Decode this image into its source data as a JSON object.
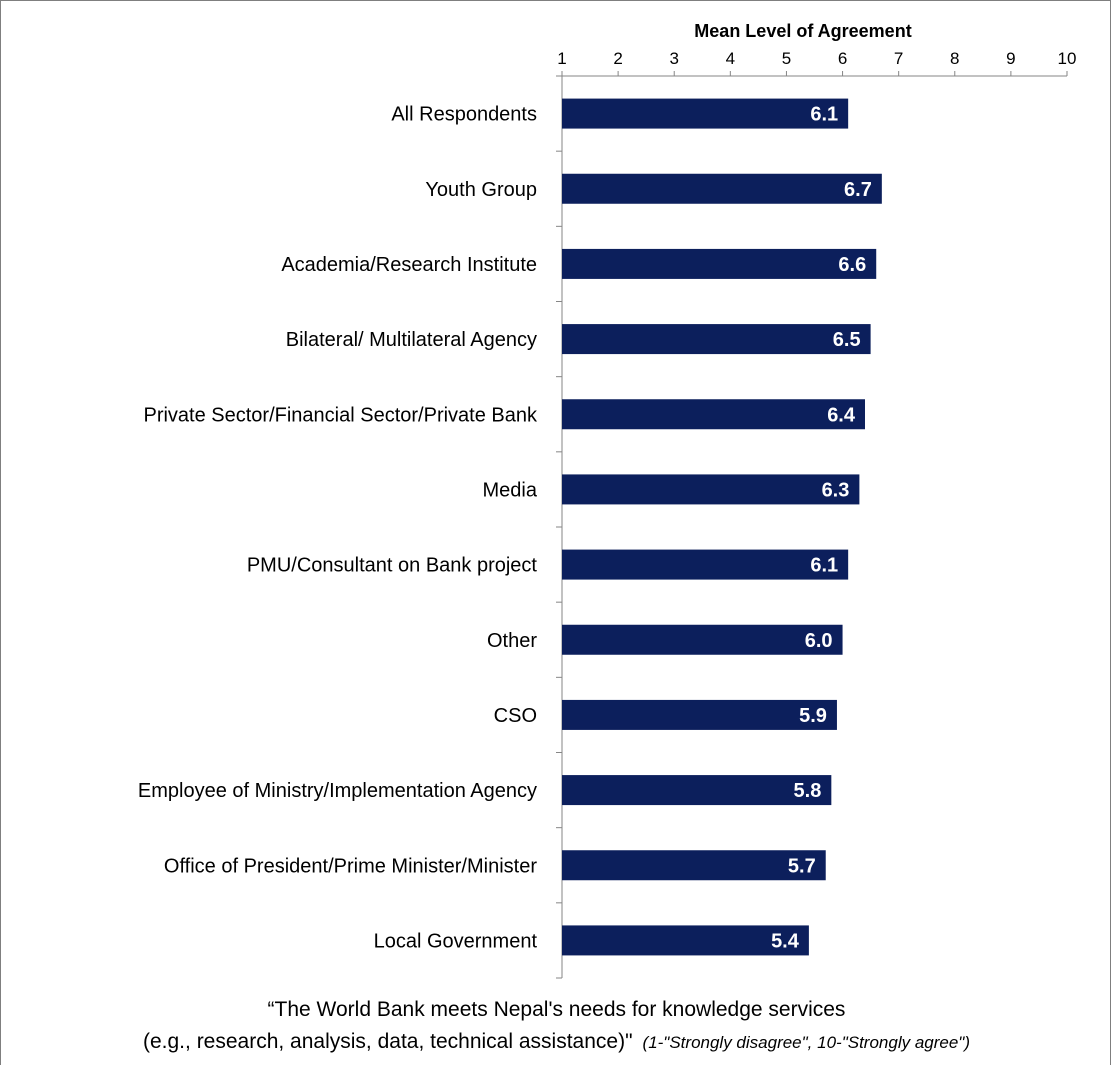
{
  "chart_data": {
    "type": "bar",
    "orientation": "horizontal",
    "title": "Mean Level of Agreement",
    "categories": [
      "All Respondents",
      "Youth Group",
      "Academia/Research Institute",
      "Bilateral/ Multilateral Agency",
      "Private Sector/Financial Sector/Private Bank",
      "Media",
      "PMU/Consultant on Bank project",
      "Other",
      "CSO",
      "Employee of Ministry/Implementation Agency",
      "Office of President/Prime Minister/Minister",
      "Local Government"
    ],
    "values": [
      6.1,
      6.7,
      6.6,
      6.5,
      6.4,
      6.3,
      6.1,
      6.0,
      5.9,
      5.8,
      5.7,
      5.4
    ],
    "value_labels": [
      "6.1",
      "6.7",
      "6.6",
      "6.5",
      "6.4",
      "6.3",
      "6.1",
      "6.0",
      "5.9",
      "5.8",
      "5.7",
      "5.4"
    ],
    "xlim": [
      1,
      10
    ],
    "ticks": [
      1,
      2,
      3,
      4,
      5,
      6,
      7,
      8,
      9,
      10
    ],
    "axis_position": "top",
    "grid": false,
    "legend": "none",
    "bar_color": "#0c1f5c",
    "label_color": "#ffffff"
  },
  "caption": {
    "line1": "“The World Bank meets Nepal's needs for knowledge services",
    "line2": "(e.g., research, analysis, data, technical assistance)\"",
    "note": "(1-\"Strongly disagree\", 10-\"Strongly agree\")"
  }
}
